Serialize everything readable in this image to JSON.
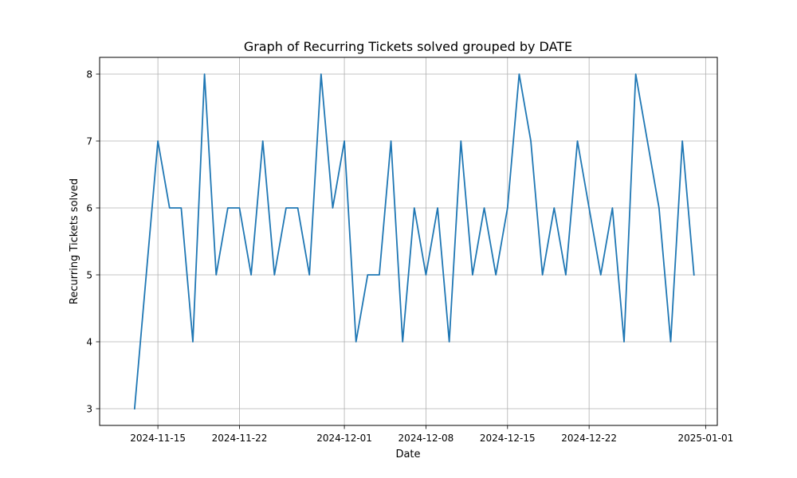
{
  "chart_data": {
    "type": "line",
    "title": "Graph of Recurring Tickets solved grouped by DATE",
    "xlabel": "Date",
    "ylabel": "Recurring Tickets solved",
    "grid": true,
    "line_color": "#1f77b4",
    "x_ticks": [
      "2024-11-15",
      "2024-11-22",
      "2024-12-01",
      "2024-12-08",
      "2024-12-15",
      "2024-12-22",
      "2025-01-01"
    ],
    "y_ticks": [
      3,
      4,
      5,
      6,
      7,
      8
    ],
    "xlim": [
      "2024-11-10",
      "2025-01-02"
    ],
    "ylim": [
      2.75,
      8.25
    ],
    "x": [
      "2024-11-13",
      "2024-11-15",
      "2024-11-16",
      "2024-11-17",
      "2024-11-18",
      "2024-11-19",
      "2024-11-20",
      "2024-11-21",
      "2024-11-22",
      "2024-11-23",
      "2024-11-24",
      "2024-11-25",
      "2024-11-26",
      "2024-11-27",
      "2024-11-28",
      "2024-11-29",
      "2024-11-30",
      "2024-12-01",
      "2024-12-02",
      "2024-12-03",
      "2024-12-04",
      "2024-12-05",
      "2024-12-06",
      "2024-12-07",
      "2024-12-08",
      "2024-12-09",
      "2024-12-10",
      "2024-12-11",
      "2024-12-12",
      "2024-12-13",
      "2024-12-14",
      "2024-12-15",
      "2024-12-16",
      "2024-12-17",
      "2024-12-18",
      "2024-12-19",
      "2024-12-20",
      "2024-12-21",
      "2024-12-23",
      "2024-12-24",
      "2024-12-25",
      "2024-12-26",
      "2024-12-28",
      "2024-12-29",
      "2024-12-30",
      "2024-12-31"
    ],
    "y": [
      3,
      7,
      6,
      6,
      4,
      8,
      5,
      6,
      6,
      5,
      7,
      5,
      6,
      6,
      5,
      8,
      6,
      7,
      4,
      5,
      5,
      7,
      4,
      6,
      5,
      6,
      4,
      7,
      5,
      6,
      5,
      6,
      8,
      7,
      5,
      6,
      5,
      7,
      5,
      6,
      4,
      8,
      6,
      4,
      7,
      5
    ]
  }
}
